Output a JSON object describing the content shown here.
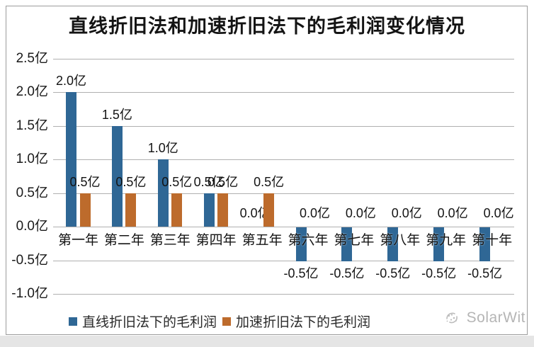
{
  "chart_data": {
    "type": "bar",
    "title": "直线折旧法和加速折旧法下的毛利润变化情况",
    "unit": "亿",
    "categories": [
      "第一年",
      "第二年",
      "第三年",
      "第四年",
      "第五年",
      "第六年",
      "第七年",
      "第八年",
      "第九年",
      "第十年"
    ],
    "series": [
      {
        "name": "直线折旧法下的毛利润",
        "color": "#2f6795",
        "values": [
          2.0,
          1.5,
          1.0,
          0.5,
          0.0,
          -0.5,
          -0.5,
          -0.5,
          -0.5,
          -0.5
        ],
        "labels": [
          "2.0亿",
          "1.5亿",
          "1.0亿",
          "0.5亿",
          "0.0亿",
          "-0.5亿",
          "-0.5亿",
          "-0.5亿",
          "-0.5亿",
          "-0.5亿"
        ]
      },
      {
        "name": "加速折旧法下的毛利润",
        "color": "#bd6b2c",
        "values": [
          0.5,
          0.5,
          0.5,
          0.5,
          0.5,
          0.0,
          0.0,
          0.0,
          0.0,
          0.0
        ],
        "labels": [
          "0.5亿",
          "0.5亿",
          "0.5亿",
          "0.5亿",
          "0.5亿",
          "0.0亿",
          "0.0亿",
          "0.0亿",
          "0.0亿",
          "0.0亿"
        ]
      }
    ],
    "y_axis": {
      "min": -1.0,
      "max": 2.5,
      "ticks": [
        {
          "label": "2.5亿",
          "value": 2.5
        },
        {
          "label": "2.0亿",
          "value": 2.0
        },
        {
          "label": "1.5亿",
          "value": 1.5
        },
        {
          "label": "1.0亿",
          "value": 1.0
        },
        {
          "label": "0.5亿",
          "value": 0.5
        },
        {
          "label": "0.0亿",
          "value": 0.0
        },
        {
          "label": "-0.5亿",
          "value": -0.5
        },
        {
          "label": "-1.0亿",
          "value": -1.0
        }
      ]
    },
    "grid": true,
    "legend_position": "bottom"
  },
  "watermark": {
    "text": "SolarWit",
    "icon": "solarwit-swirl-icon",
    "color": "#b5b5b5"
  },
  "frame": {
    "border_color": "#9c9c9c"
  }
}
